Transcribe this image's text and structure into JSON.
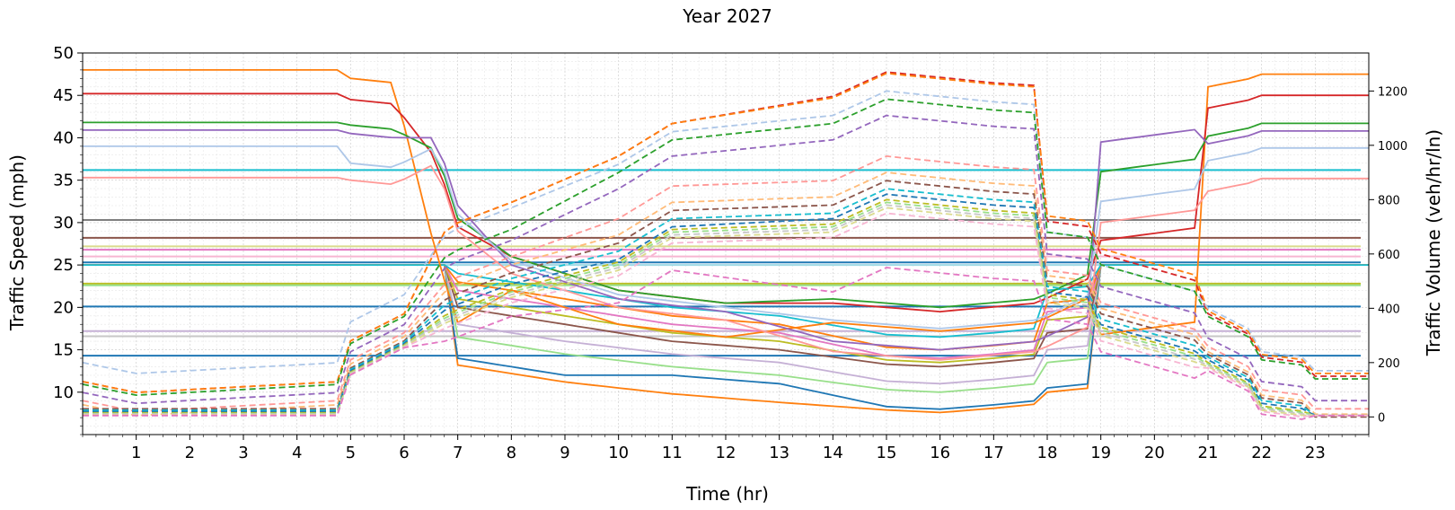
{
  "chart_data": {
    "type": "line",
    "title": "Year 2027",
    "xlabel": "Time (hr)",
    "ylabel": "Traffic Speed (mph)",
    "y2label": "Traffic Volume (veh/hr/ln)",
    "xlim": [
      0,
      24
    ],
    "ylim": [
      5,
      50
    ],
    "y2lim": [
      -65,
      1340
    ],
    "x_ticks": [
      1,
      2,
      3,
      4,
      5,
      6,
      7,
      8,
      9,
      10,
      11,
      12,
      13,
      14,
      15,
      16,
      17,
      18,
      19,
      20,
      21,
      22,
      23
    ],
    "y_ticks": [
      10,
      15,
      20,
      25,
      30,
      35,
      40,
      45,
      50
    ],
    "y2_ticks": [
      0,
      200,
      400,
      600,
      800,
      1000,
      1200
    ],
    "grid": true,
    "speed_series_constant": [
      {
        "color": "#17becf",
        "value": 36.2
      },
      {
        "color": "#7f7f7f",
        "value": 30.3
      },
      {
        "color": "#8c564b",
        "value": 28.2
      },
      {
        "color": "#dbdb8d",
        "value": 27.2
      },
      {
        "color": "#e377c2",
        "value": 26.8
      },
      {
        "color": "#f7b6d2",
        "value": 26.0
      },
      {
        "color": "#1f77b4",
        "value": 25.3
      },
      {
        "color": "#9edae5",
        "value": 25.0
      },
      {
        "color": "#bcbd22",
        "value": 22.8
      },
      {
        "color": "#98df8a",
        "value": 22.6
      },
      {
        "color": "#1f77b4",
        "value": 20.1
      },
      {
        "color": "#c5b0d5",
        "value": 17.2
      },
      {
        "color": "#c7c7c7",
        "value": 16.6
      },
      {
        "color": "#1f77b4",
        "value": 14.3
      }
    ],
    "speed_series_ap": [
      {
        "color": "#ff7f0e",
        "base": 48.0,
        "am": 18.2,
        "mid": 18.0,
        "pm": 17.2,
        "night": 16.8,
        "n1": 47.0,
        "n2": 47.5
      },
      {
        "color": "#d62728",
        "base": 45.2,
        "am": 29.5,
        "mid": 22.0,
        "pm": 19.5,
        "night": 27.9,
        "n1": 44.5,
        "n2": 45.0
      },
      {
        "color": "#2ca02c",
        "base": 41.8,
        "am": 30.5,
        "mid": 22.0,
        "pm": 20.0,
        "night": 36.0,
        "n1": 41.5,
        "n2": 41.7
      },
      {
        "color": "#9467bd",
        "base": 40.9,
        "am": 32.0,
        "mid": 21.0,
        "pm": 15.0,
        "night": 39.5,
        "n1": 40.5,
        "n2": 40.8
      },
      {
        "color": "#aec7e8",
        "base": 39.0,
        "am": 31.0,
        "mid": 21.5,
        "pm": 17.5,
        "night": 32.5,
        "n1": 37.0,
        "n2": 38.8
      },
      {
        "color": "#ff9896",
        "base": 35.3,
        "am": 29.0,
        "mid": 20.0,
        "pm": 13.8,
        "night": 30.0,
        "n1": 35.0,
        "n2": 35.2
      }
    ],
    "speed_series_flat": [
      {
        "color": "#ff7f0e",
        "am": 13.2,
        "mid": 8.8,
        "pm": 7.6,
        "ev": 10.0
      },
      {
        "color": "#1f77b4",
        "am": 14.0,
        "mid": 11.0,
        "pm": 8.0,
        "ev": 10.5
      },
      {
        "color": "#98df8a",
        "am": 16.5,
        "mid": 12.0,
        "pm": 10.0,
        "ev": 13.5
      },
      {
        "color": "#c5b0d5",
        "am": 18.0,
        "mid": 13.5,
        "pm": 11.0,
        "ev": 15.0
      },
      {
        "color": "#8c564b",
        "am": 20.0,
        "mid": 15.0,
        "pm": 13.0,
        "ev": 17.0
      },
      {
        "color": "#bcbd22",
        "am": 21.0,
        "mid": 16.0,
        "pm": 13.5,
        "ev": 18.5
      },
      {
        "color": "#e377c2",
        "am": 22.0,
        "mid": 17.0,
        "pm": 14.0,
        "ev": 19.5
      },
      {
        "color": "#ff7f0e",
        "am": 23.0,
        "mid": 18.0,
        "pm": 15.0,
        "ev": 20.5
      },
      {
        "color": "#17becf",
        "am": 24.0,
        "mid": 19.0,
        "pm": 16.5,
        "ev": 22.0
      }
    ],
    "volume_series": [
      {
        "color": "#d62728",
        "low": 130,
        "peak_am": 700,
        "mid": 1080,
        "pm": 1270,
        "ev": 600,
        "night": 300
      },
      {
        "color": "#ff7f0e",
        "low": 130,
        "peak_am": 700,
        "mid": 1080,
        "pm": 1265,
        "ev": 620,
        "night": 310
      },
      {
        "color": "#aec7e8",
        "low": 200,
        "peak_am": 680,
        "mid": 1050,
        "pm": 1200,
        "ev": 560,
        "night": 320
      },
      {
        "color": "#2ca02c",
        "low": 120,
        "peak_am": 600,
        "mid": 1020,
        "pm": 1170,
        "ev": 560,
        "night": 290
      },
      {
        "color": "#9467bd",
        "low": 90,
        "peak_am": 560,
        "mid": 960,
        "pm": 1110,
        "ev": 480,
        "night": 210
      },
      {
        "color": "#ff9896",
        "low": 60,
        "peak_am": 500,
        "mid": 850,
        "pm": 960,
        "ev": 420,
        "night": 180
      },
      {
        "color": "#ffbb78",
        "low": 45,
        "peak_am": 470,
        "mid": 790,
        "pm": 900,
        "ev": 400,
        "night": 160
      },
      {
        "color": "#8c564b",
        "low": 30,
        "peak_am": 440,
        "mid": 760,
        "pm": 870,
        "ev": 380,
        "night": 150
      },
      {
        "color": "#17becf",
        "low": 25,
        "peak_am": 420,
        "mid": 730,
        "pm": 840,
        "ev": 360,
        "night": 140
      },
      {
        "color": "#1f77b4",
        "low": 20,
        "peak_am": 400,
        "mid": 700,
        "pm": 820,
        "ev": 340,
        "night": 130
      },
      {
        "color": "#bcbd22",
        "low": 15,
        "peak_am": 380,
        "mid": 690,
        "pm": 800,
        "ev": 330,
        "night": 120
      },
      {
        "color": "#98df8a",
        "low": 12,
        "peak_am": 370,
        "mid": 680,
        "pm": 790,
        "ev": 320,
        "night": 115
      },
      {
        "color": "#c7c7c7",
        "low": 10,
        "peak_am": 360,
        "mid": 670,
        "pm": 780,
        "ev": 310,
        "night": 110
      },
      {
        "color": "#dbdb8d",
        "low": 8,
        "peak_am": 350,
        "mid": 660,
        "pm": 770,
        "ev": 300,
        "night": 105
      },
      {
        "color": "#f7b6d2",
        "low": 6,
        "peak_am": 330,
        "mid": 640,
        "pm": 750,
        "ev": 280,
        "night": 100
      },
      {
        "color": "#e377c2",
        "low": 5,
        "peak_am": 280,
        "mid": 540,
        "pm": 550,
        "ev": 240,
        "night": 90
      }
    ]
  }
}
